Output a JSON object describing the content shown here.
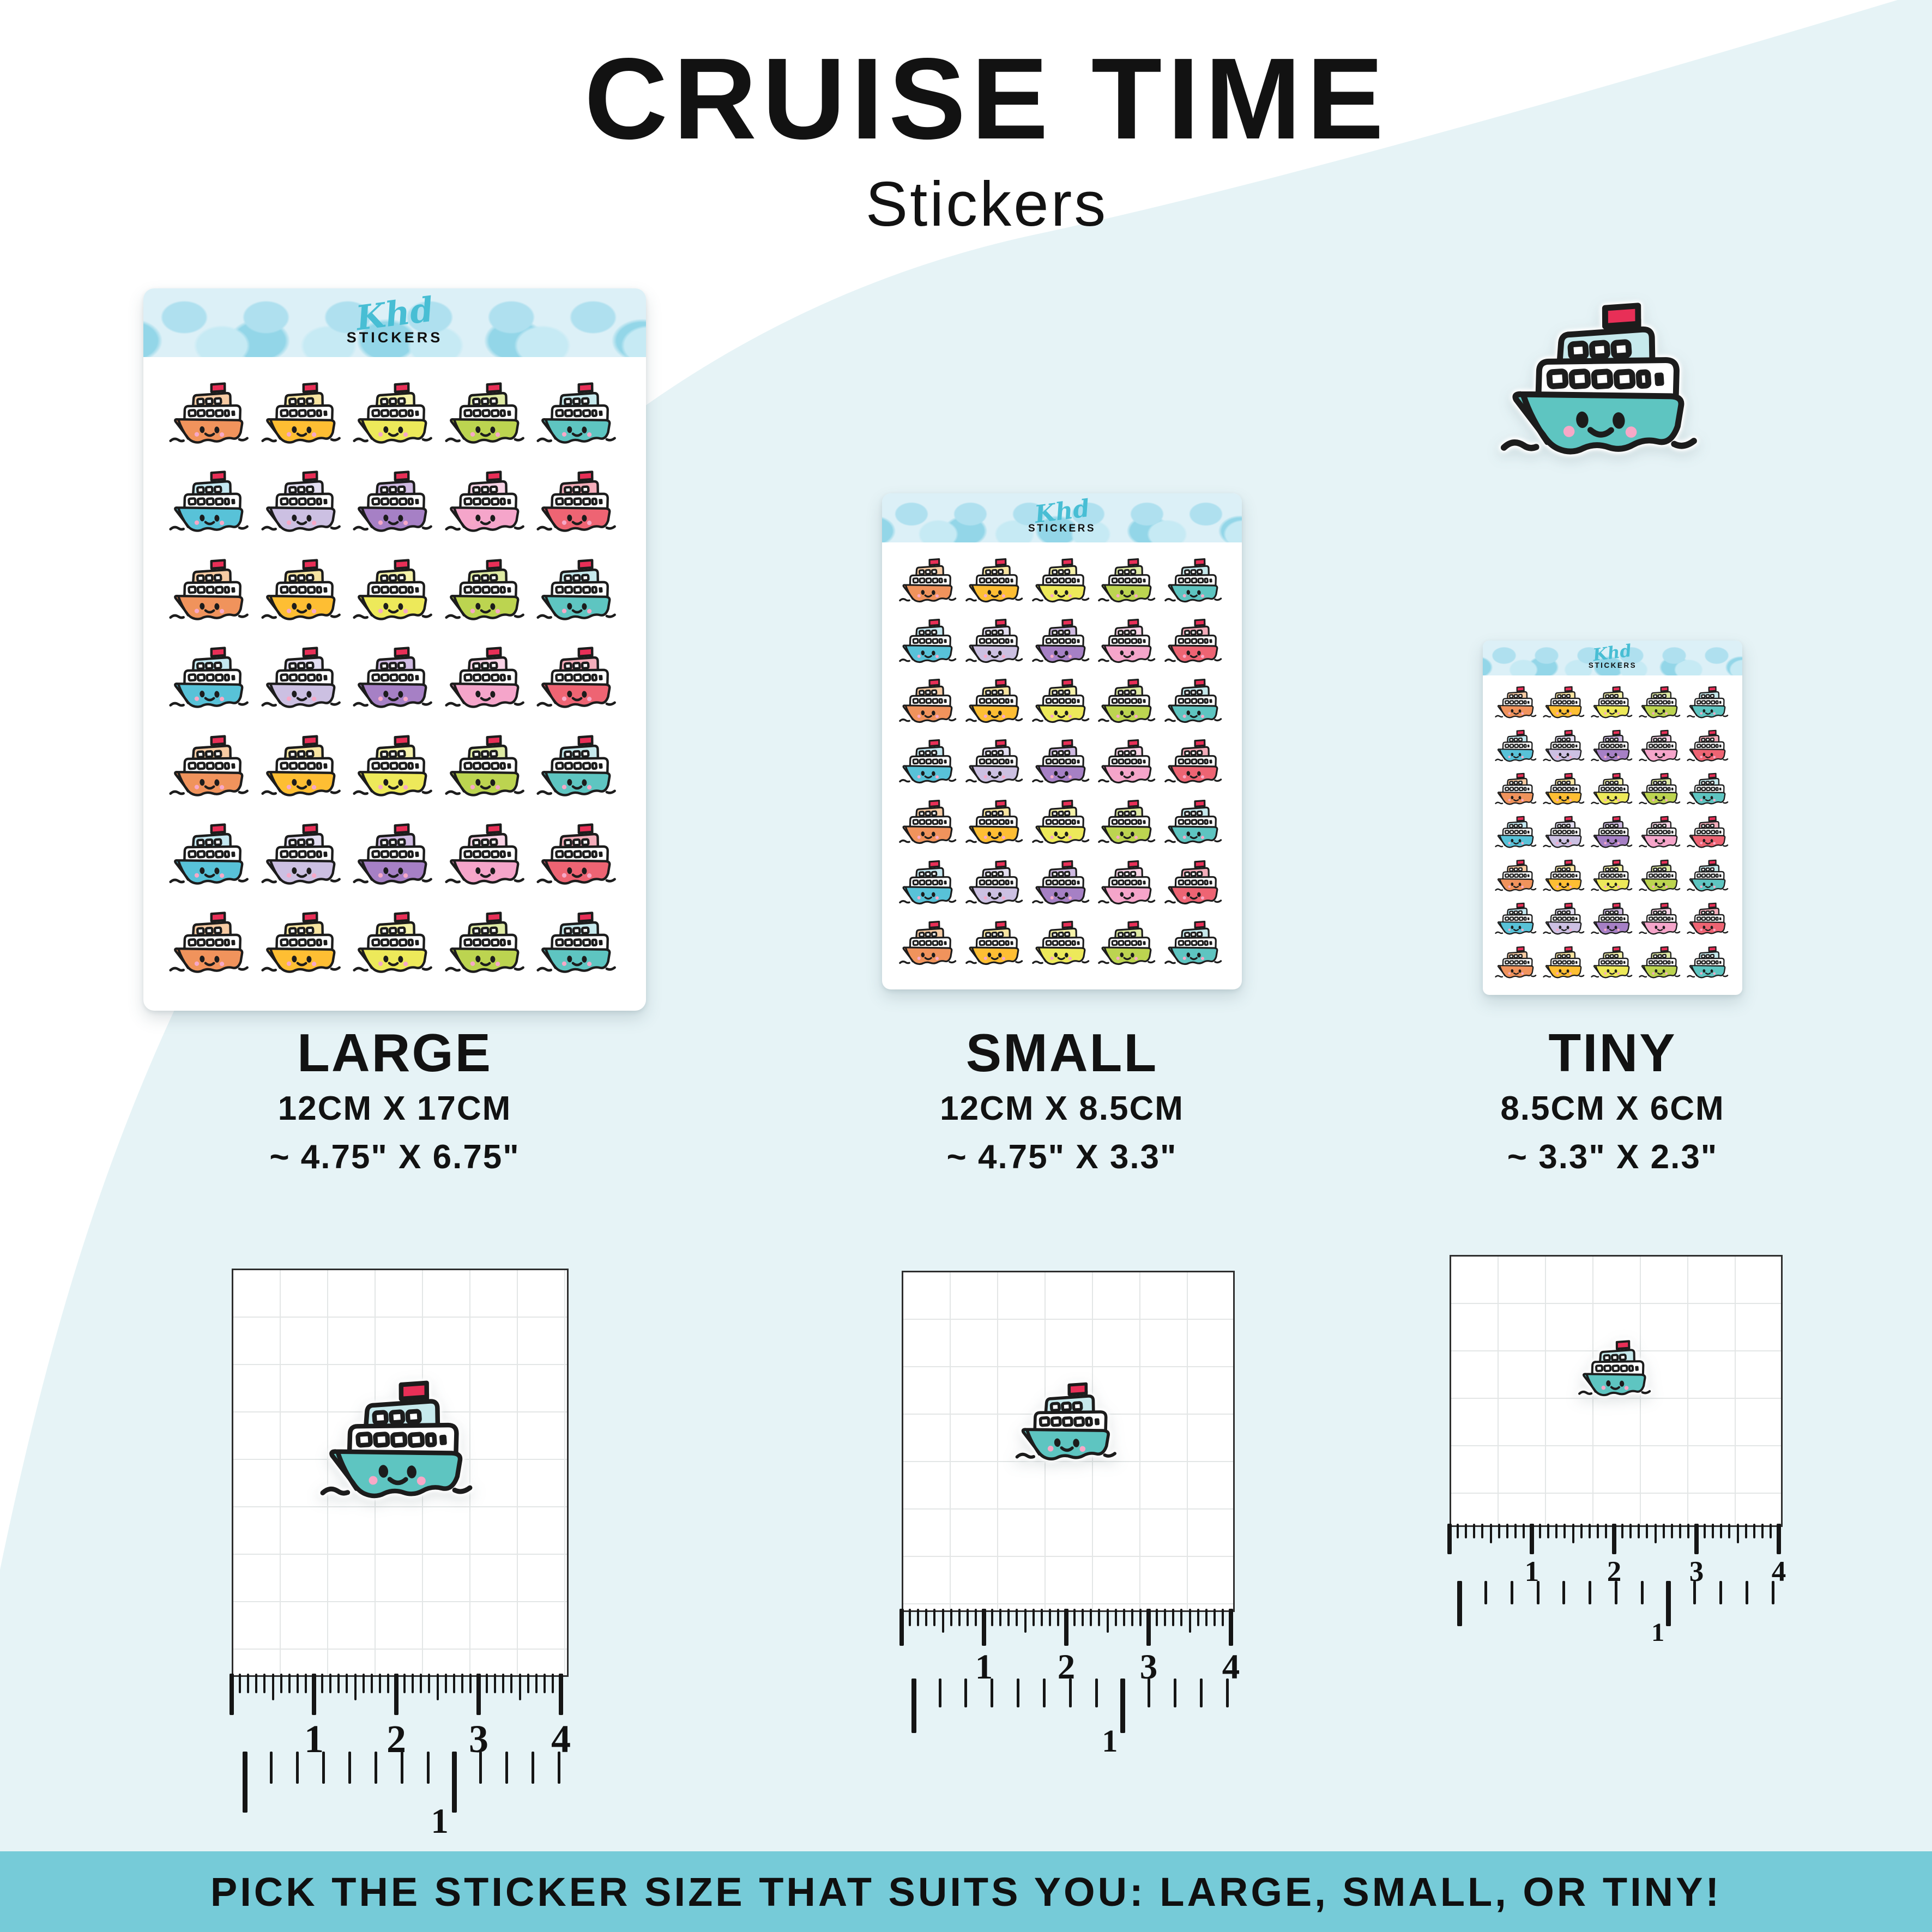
{
  "title": "CRUISE TIME",
  "subtitle": "Stickers",
  "brand": {
    "script": "Khd",
    "word": "STICKERS"
  },
  "banner": {
    "text": "PICK THE STICKER SIZE THAT SUITS YOU: LARGE, SMALL, OR TINY!"
  },
  "sheets": [
    {
      "id": "large",
      "label": "LARGE",
      "dims_cm": "12CM X 17CM",
      "dims_in": "~ 4.75\" X 6.75\"",
      "rows": 7,
      "cols": 5
    },
    {
      "id": "small",
      "label": "SMALL",
      "dims_cm": "12CM X 8.5CM",
      "dims_in": "~ 4.75\" X 3.3\"",
      "rows": 7,
      "cols": 5
    },
    {
      "id": "tiny",
      "label": "TINY",
      "dims_cm": "8.5CM X 6CM",
      "dims_in": "~ 3.3\" X 2.3\"",
      "rows": 7,
      "cols": 5
    }
  ],
  "palette": [
    {
      "name": "orange",
      "hull": "#F0935C",
      "cabin": "#F7CBA3"
    },
    {
      "name": "amber",
      "hull": "#FEBE33",
      "cabin": "#F8E5A1"
    },
    {
      "name": "yellow",
      "hull": "#EDE95A",
      "cabin": "#F5F2A9"
    },
    {
      "name": "lime",
      "hull": "#BCD450",
      "cabin": "#DEEAA3"
    },
    {
      "name": "teal",
      "hull": "#5EC5C1",
      "cabin": "#C6E9EC"
    },
    {
      "name": "blue",
      "hull": "#58C2D8",
      "cabin": "#C4E8F1"
    },
    {
      "name": "lavender",
      "hull": "#CCC0E2",
      "cabin": "#E3DEF1"
    },
    {
      "name": "purple",
      "hull": "#A680C5",
      "cabin": "#CFBAE2"
    },
    {
      "name": "pink",
      "hull": "#F5A5CA",
      "cabin": "#F8D2E5"
    },
    {
      "name": "coral",
      "hull": "#EE6473",
      "cabin": "#F4ADBA"
    }
  ],
  "ship": {
    "funnel": "#E82F57",
    "cheek": "#F7A8C7",
    "outline": "#1C1C1C",
    "feature_color": "teal"
  },
  "rulers": {
    "cm_numbers": [
      "1",
      "2",
      "3",
      "4"
    ],
    "inch_label": "1"
  },
  "colors": {
    "page_bg": "#FFFFFF",
    "blob": "#E6F3F6",
    "banner_bg": "#76CBD8",
    "sheet_header_bg": "#DCF0F7",
    "dot": "#AFE0EF",
    "logo": "#48BED4",
    "text": "#121212"
  }
}
